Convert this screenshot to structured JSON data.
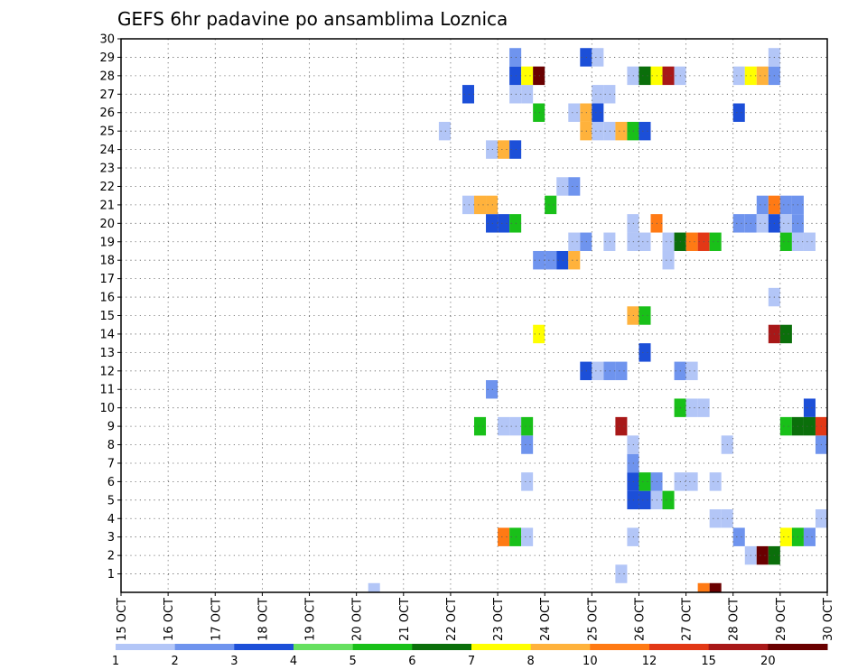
{
  "chart_data": {
    "type": "heatmap",
    "title": "GEFS 6hr padavine po ansamblima Loznica",
    "x_ticks": [
      "15 OCT",
      "16 OCT",
      "17 OCT",
      "18 OCT",
      "19 OCT",
      "20 OCT",
      "21 OCT",
      "22 OCT",
      "23 OCT",
      "24 OCT",
      "25 OCT",
      "26 OCT",
      "27 OCT",
      "28 OCT",
      "29 OCT",
      "30 OCT"
    ],
    "x_range": [
      "2023-10-15 00:00",
      "2023-10-30 00:00"
    ],
    "y_range": [
      0,
      30
    ],
    "y_ticks": [
      "1",
      "2",
      "3",
      "4",
      "5",
      "6",
      "7",
      "8",
      "9",
      "10",
      "11",
      "12",
      "13",
      "14",
      "15",
      "16",
      "17",
      "18",
      "19",
      "20",
      "21",
      "22",
      "23",
      "24",
      "25",
      "26",
      "27",
      "28",
      "29",
      "30"
    ],
    "grid": true,
    "colorbar": {
      "labels": [
        "1",
        "2",
        "3",
        "4",
        "5",
        "6",
        "7",
        "8",
        "10",
        "12",
        "15",
        "20"
      ],
      "colors": [
        "#b3c6f7",
        "#6f94ee",
        "#1c4fd8",
        "#66e060",
        "#19c019",
        "#0b6f0b",
        "#ffff00",
        "#ffb23c",
        "#ff7a14",
        "#e23816",
        "#a81818",
        "#6a0000"
      ]
    },
    "cells": [
      {
        "t": "2023-10-20 06:00",
        "m": 0,
        "v": 1
      },
      {
        "t": "2023-10-27 06:00",
        "m": 0,
        "v": 10
      },
      {
        "t": "2023-10-27 12:00",
        "m": 0,
        "v": 20
      },
      {
        "t": "2023-10-25 12:00",
        "m": 1,
        "v": 1
      },
      {
        "t": "2023-10-28 06:00",
        "m": 2,
        "v": 1
      },
      {
        "t": "2023-10-28 12:00",
        "m": 2,
        "v": 20
      },
      {
        "t": "2023-10-28 18:00",
        "m": 2,
        "v": 6
      },
      {
        "t": "2023-10-23 00:00",
        "m": 3,
        "v": 10
      },
      {
        "t": "2023-10-23 06:00",
        "m": 3,
        "v": 5
      },
      {
        "t": "2023-10-23 12:00",
        "m": 3,
        "v": 1
      },
      {
        "t": "2023-10-25 18:00",
        "m": 3,
        "v": 1
      },
      {
        "t": "2023-10-28 00:00",
        "m": 3,
        "v": 2
      },
      {
        "t": "2023-10-29 00:00",
        "m": 3,
        "v": 7
      },
      {
        "t": "2023-10-29 06:00",
        "m": 3,
        "v": 5
      },
      {
        "t": "2023-10-29 12:00",
        "m": 3,
        "v": 2
      },
      {
        "t": "2023-10-27 12:00",
        "m": 4,
        "v": 1
      },
      {
        "t": "2023-10-27 18:00",
        "m": 4,
        "v": 1
      },
      {
        "t": "2023-10-29 18:00",
        "m": 4,
        "v": 1
      },
      {
        "t": "2023-10-25 18:00",
        "m": 5,
        "v": 3
      },
      {
        "t": "2023-10-26 00:00",
        "m": 5,
        "v": 3
      },
      {
        "t": "2023-10-26 06:00",
        "m": 5,
        "v": 1
      },
      {
        "t": "2023-10-26 12:00",
        "m": 5,
        "v": 5
      },
      {
        "t": "2023-10-23 12:00",
        "m": 6,
        "v": 1
      },
      {
        "t": "2023-10-25 18:00",
        "m": 6,
        "v": 3
      },
      {
        "t": "2023-10-26 00:00",
        "m": 6,
        "v": 5
      },
      {
        "t": "2023-10-26 06:00",
        "m": 6,
        "v": 2
      },
      {
        "t": "2023-10-26 18:00",
        "m": 6,
        "v": 1
      },
      {
        "t": "2023-10-27 00:00",
        "m": 6,
        "v": 1
      },
      {
        "t": "2023-10-27 12:00",
        "m": 6,
        "v": 1
      },
      {
        "t": "2023-10-25 18:00",
        "m": 7,
        "v": 2
      },
      {
        "t": "2023-10-23 12:00",
        "m": 8,
        "v": 2
      },
      {
        "t": "2023-10-25 18:00",
        "m": 8,
        "v": 1
      },
      {
        "t": "2023-10-27 18:00",
        "m": 8,
        "v": 1
      },
      {
        "t": "2023-10-29 18:00",
        "m": 8,
        "v": 2
      },
      {
        "t": "2023-10-22 12:00",
        "m": 9,
        "v": 5
      },
      {
        "t": "2023-10-23 00:00",
        "m": 9,
        "v": 1
      },
      {
        "t": "2023-10-23 06:00",
        "m": 9,
        "v": 1
      },
      {
        "t": "2023-10-23 12:00",
        "m": 9,
        "v": 5
      },
      {
        "t": "2023-10-25 12:00",
        "m": 9,
        "v": 15
      },
      {
        "t": "2023-10-29 00:00",
        "m": 9,
        "v": 5
      },
      {
        "t": "2023-10-29 06:00",
        "m": 9,
        "v": 6
      },
      {
        "t": "2023-10-29 12:00",
        "m": 9,
        "v": 6
      },
      {
        "t": "2023-10-29 18:00",
        "m": 9,
        "v": 12
      },
      {
        "t": "2023-10-26 18:00",
        "m": 10,
        "v": 5
      },
      {
        "t": "2023-10-27 00:00",
        "m": 10,
        "v": 1
      },
      {
        "t": "2023-10-27 06:00",
        "m": 10,
        "v": 1
      },
      {
        "t": "2023-10-29 12:00",
        "m": 10,
        "v": 3
      },
      {
        "t": "2023-10-22 18:00",
        "m": 11,
        "v": 2
      },
      {
        "t": "2023-10-24 18:00",
        "m": 12,
        "v": 3
      },
      {
        "t": "2023-10-25 00:00",
        "m": 12,
        "v": 1
      },
      {
        "t": "2023-10-25 06:00",
        "m": 12,
        "v": 2
      },
      {
        "t": "2023-10-25 12:00",
        "m": 12,
        "v": 2
      },
      {
        "t": "2023-10-26 18:00",
        "m": 12,
        "v": 2
      },
      {
        "t": "2023-10-27 00:00",
        "m": 12,
        "v": 1
      },
      {
        "t": "2023-10-26 00:00",
        "m": 13,
        "v": 3
      },
      {
        "t": "2023-10-23 18:00",
        "m": 14,
        "v": 7
      },
      {
        "t": "2023-10-28 18:00",
        "m": 14,
        "v": 15
      },
      {
        "t": "2023-10-29 00:00",
        "m": 14,
        "v": 6
      },
      {
        "t": "2023-10-25 18:00",
        "m": 15,
        "v": 8
      },
      {
        "t": "2023-10-26 00:00",
        "m": 15,
        "v": 5
      },
      {
        "t": "2023-10-28 18:00",
        "m": 16,
        "v": 1
      },
      {
        "t": "2023-10-26 12:00",
        "m": 18,
        "v": 1
      },
      {
        "t": "2023-10-23 18:00",
        "m": 18,
        "v": 2
      },
      {
        "t": "2023-10-24 00:00",
        "m": 18,
        "v": 2
      },
      {
        "t": "2023-10-24 06:00",
        "m": 18,
        "v": 3
      },
      {
        "t": "2023-10-24 12:00",
        "m": 18,
        "v": 8
      },
      {
        "t": "2023-10-24 12:00",
        "m": 19,
        "v": 1
      },
      {
        "t": "2023-10-24 18:00",
        "m": 19,
        "v": 2
      },
      {
        "t": "2023-10-25 06:00",
        "m": 19,
        "v": 1
      },
      {
        "t": "2023-10-25 18:00",
        "m": 19,
        "v": 1
      },
      {
        "t": "2023-10-26 00:00",
        "m": 19,
        "v": 1
      },
      {
        "t": "2023-10-26 12:00",
        "m": 19,
        "v": 1
      },
      {
        "t": "2023-10-26 18:00",
        "m": 19,
        "v": 6
      },
      {
        "t": "2023-10-27 00:00",
        "m": 19,
        "v": 10
      },
      {
        "t": "2023-10-27 06:00",
        "m": 19,
        "v": 12
      },
      {
        "t": "2023-10-27 12:00",
        "m": 19,
        "v": 5
      },
      {
        "t": "2023-10-29 00:00",
        "m": 19,
        "v": 5
      },
      {
        "t": "2023-10-29 06:00",
        "m": 19,
        "v": 1
      },
      {
        "t": "2023-10-29 12:00",
        "m": 19,
        "v": 1
      },
      {
        "t": "2023-10-22 18:00",
        "m": 20,
        "v": 3
      },
      {
        "t": "2023-10-23 00:00",
        "m": 20,
        "v": 3
      },
      {
        "t": "2023-10-23 06:00",
        "m": 20,
        "v": 5
      },
      {
        "t": "2023-10-25 18:00",
        "m": 20,
        "v": 1
      },
      {
        "t": "2023-10-26 06:00",
        "m": 20,
        "v": 10
      },
      {
        "t": "2023-10-28 00:00",
        "m": 20,
        "v": 2
      },
      {
        "t": "2023-10-28 06:00",
        "m": 20,
        "v": 2
      },
      {
        "t": "2023-10-28 12:00",
        "m": 20,
        "v": 1
      },
      {
        "t": "2023-10-28 18:00",
        "m": 20,
        "v": 3
      },
      {
        "t": "2023-10-29 00:00",
        "m": 20,
        "v": 1
      },
      {
        "t": "2023-10-29 06:00",
        "m": 20,
        "v": 2
      },
      {
        "t": "2023-10-22 06:00",
        "m": 21,
        "v": 1
      },
      {
        "t": "2023-10-22 12:00",
        "m": 21,
        "v": 8
      },
      {
        "t": "2023-10-22 18:00",
        "m": 21,
        "v": 8
      },
      {
        "t": "2023-10-24 00:00",
        "m": 21,
        "v": 5
      },
      {
        "t": "2023-10-28 12:00",
        "m": 21,
        "v": 2
      },
      {
        "t": "2023-10-28 18:00",
        "m": 21,
        "v": 10
      },
      {
        "t": "2023-10-29 00:00",
        "m": 21,
        "v": 2
      },
      {
        "t": "2023-10-29 06:00",
        "m": 21,
        "v": 2
      },
      {
        "t": "2023-10-24 06:00",
        "m": 22,
        "v": 1
      },
      {
        "t": "2023-10-24 12:00",
        "m": 22,
        "v": 2
      },
      {
        "t": "2023-10-22 18:00",
        "m": 24,
        "v": 1
      },
      {
        "t": "2023-10-23 00:00",
        "m": 24,
        "v": 8
      },
      {
        "t": "2023-10-23 06:00",
        "m": 24,
        "v": 3
      },
      {
        "t": "2023-10-21 18:00",
        "m": 25,
        "v": 1
      },
      {
        "t": "2023-10-24 18:00",
        "m": 25,
        "v": 8
      },
      {
        "t": "2023-10-25 00:00",
        "m": 25,
        "v": 1
      },
      {
        "t": "2023-10-25 06:00",
        "m": 25,
        "v": 1
      },
      {
        "t": "2023-10-25 12:00",
        "m": 25,
        "v": 8
      },
      {
        "t": "2023-10-25 18:00",
        "m": 25,
        "v": 5
      },
      {
        "t": "2023-10-26 00:00",
        "m": 25,
        "v": 3
      },
      {
        "t": "2023-10-23 18:00",
        "m": 26,
        "v": 5
      },
      {
        "t": "2023-10-24 12:00",
        "m": 26,
        "v": 1
      },
      {
        "t": "2023-10-24 18:00",
        "m": 26,
        "v": 8
      },
      {
        "t": "2023-10-25 00:00",
        "m": 26,
        "v": 3
      },
      {
        "t": "2023-10-28 00:00",
        "m": 26,
        "v": 3
      },
      {
        "t": "2023-10-22 06:00",
        "m": 27,
        "v": 3
      },
      {
        "t": "2023-10-23 06:00",
        "m": 27,
        "v": 1
      },
      {
        "t": "2023-10-23 12:00",
        "m": 27,
        "v": 1
      },
      {
        "t": "2023-10-25 00:00",
        "m": 27,
        "v": 1
      },
      {
        "t": "2023-10-25 06:00",
        "m": 27,
        "v": 1
      },
      {
        "t": "2023-10-23 06:00",
        "m": 28,
        "v": 3
      },
      {
        "t": "2023-10-23 12:00",
        "m": 28,
        "v": 7
      },
      {
        "t": "2023-10-23 18:00",
        "m": 28,
        "v": 20
      },
      {
        "t": "2023-10-25 18:00",
        "m": 28,
        "v": 1
      },
      {
        "t": "2023-10-26 00:00",
        "m": 28,
        "v": 6
      },
      {
        "t": "2023-10-26 06:00",
        "m": 28,
        "v": 7
      },
      {
        "t": "2023-10-26 12:00",
        "m": 28,
        "v": 15
      },
      {
        "t": "2023-10-26 18:00",
        "m": 28,
        "v": 1
      },
      {
        "t": "2023-10-28 00:00",
        "m": 28,
        "v": 1
      },
      {
        "t": "2023-10-28 06:00",
        "m": 28,
        "v": 7
      },
      {
        "t": "2023-10-28 12:00",
        "m": 28,
        "v": 8
      },
      {
        "t": "2023-10-28 18:00",
        "m": 28,
        "v": 2
      },
      {
        "t": "2023-10-23 06:00",
        "m": 29,
        "v": 2
      },
      {
        "t": "2023-10-24 18:00",
        "m": 29,
        "v": 3
      },
      {
        "t": "2023-10-25 00:00",
        "m": 29,
        "v": 1
      },
      {
        "t": "2023-10-28 18:00",
        "m": 29,
        "v": 1
      }
    ]
  }
}
